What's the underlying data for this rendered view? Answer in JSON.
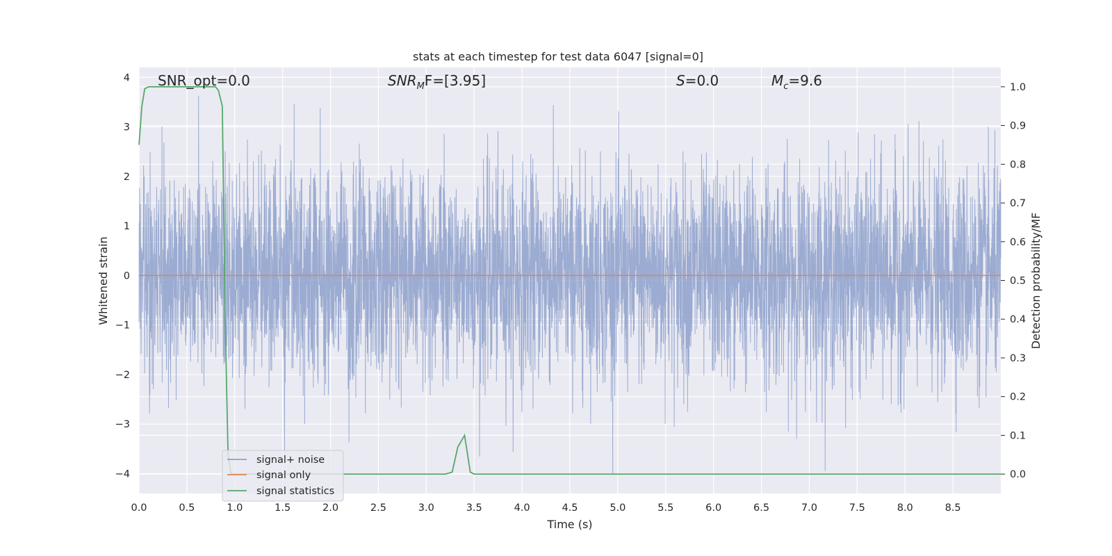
{
  "chart_data": {
    "type": "line",
    "title": "stats at each timestep for test data 6047 [signal=0]",
    "xlabel": "Time (s)",
    "ylabel_left": "Whitened strain",
    "ylabel_right": "Detection probability/MF",
    "xlim": [
      0.0,
      9.0
    ],
    "ylim_left": [
      -4.4,
      4.2
    ],
    "ylim_right": [
      -0.05,
      1.05
    ],
    "x_ticks": [
      "0.0",
      "0.5",
      "1.0",
      "1.5",
      "2.0",
      "2.5",
      "3.0",
      "3.5",
      "4.0",
      "4.5",
      "5.0",
      "5.5",
      "6.0",
      "6.5",
      "7.0",
      "7.5",
      "8.0",
      "8.5"
    ],
    "y_ticks_left": [
      "4",
      "3",
      "2",
      "1",
      "0",
      "−1",
      "−2",
      "−3",
      "−4"
    ],
    "y_ticks_right": [
      "1.0",
      "0.9",
      "0.8",
      "0.7",
      "0.6",
      "0.5",
      "0.4",
      "0.3",
      "0.2",
      "0.1",
      "0.0"
    ],
    "grid": true,
    "legend_position": "lower-left",
    "annotations": {
      "snr_opt": "SNR_opt=0.0",
      "snr_mf_main": "SNR",
      "snr_mf_sub": "M",
      "snr_mf_rest": "F=[3.95]",
      "s_main": "S",
      "s_rest": "=0.0",
      "mc_main": "M",
      "mc_sub": "c",
      "mc_rest": "=9.6"
    },
    "series": [
      {
        "name": "signal+ noise",
        "color": "#8da0cb",
        "axis": "left",
        "description_values": "white noise, typical envelope about ±2.5, peaks to about 3.8 and −4.0",
        "envelope": {
          "positive_typical": 2.5,
          "negative_typical": -2.5,
          "max": 3.8,
          "min": -4.0
        }
      },
      {
        "name": "signal only",
        "color": "#dd8452",
        "axis": "left",
        "x": [
          0.0,
          9.0
        ],
        "y": [
          0.0,
          0.0
        ]
      },
      {
        "name": "signal statistics",
        "color": "#55a868",
        "axis": "right",
        "x": [
          0.0,
          0.03,
          0.06,
          0.1,
          0.2,
          0.4,
          0.6,
          0.8,
          0.83,
          0.87,
          0.9,
          0.93,
          0.96,
          1.0,
          1.5,
          2.0,
          2.5,
          3.0,
          3.2,
          3.27,
          3.33,
          3.4,
          3.46,
          3.5,
          4.0,
          5.0,
          6.0,
          7.0,
          8.0,
          9.0
        ],
        "y": [
          0.85,
          0.95,
          0.995,
          1.0,
          1.0,
          1.0,
          1.0,
          1.0,
          0.99,
          0.95,
          0.4,
          0.05,
          0.0,
          0.0,
          0.0,
          0.0,
          0.0,
          0.0,
          0.0,
          0.005,
          0.07,
          0.1,
          0.005,
          0.0,
          0.0,
          0.0,
          0.0,
          0.0,
          0.0,
          0.0
        ]
      }
    ]
  },
  "colors": {
    "plot_background": "#eaeaf2",
    "grid": "#ffffff"
  }
}
